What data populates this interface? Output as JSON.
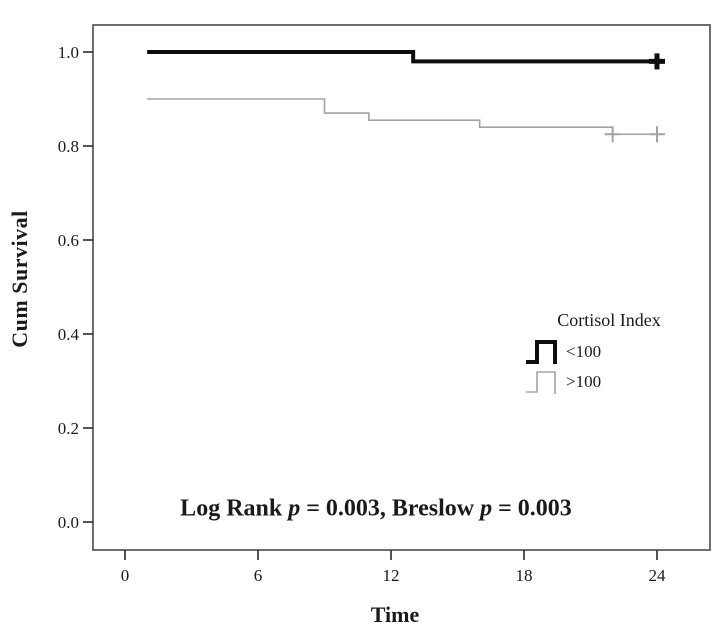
{
  "figure": {
    "y_axis_label": "Cum Survival",
    "x_axis_label": "Time"
  },
  "legend": {
    "title": "Cortisol Index",
    "entries": [
      {
        "label": "<100"
      },
      {
        "label": ">100"
      }
    ]
  },
  "annotation": {
    "full_text": "Log Rank p = 0.003, Breslow p = 0.003",
    "parts": [
      {
        "t": "Log Rank ",
        "italic": false
      },
      {
        "t": "p",
        "italic": true
      },
      {
        "t": " = 0.003, Breslow ",
        "italic": false
      },
      {
        "t": "p",
        "italic": true
      },
      {
        "t": " = 0.003",
        "italic": false
      }
    ]
  },
  "chart_data": {
    "type": "line",
    "subtype": "kaplan-meier-step",
    "title": "",
    "xlabel": "Time",
    "ylabel": "Cum Survival",
    "x_ticks": [
      0,
      6,
      12,
      18,
      24
    ],
    "y_ticks": [
      0.0,
      0.2,
      0.4,
      0.6,
      0.8,
      1.0
    ],
    "xlim": [
      -1.44,
      26.4
    ],
    "ylim": [
      -0.06,
      1.06
    ],
    "grid": false,
    "legend_position": "right-middle",
    "group_variable": "Cortisol Index",
    "series": [
      {
        "name": "<100",
        "color": "#0d0d0d",
        "line_width": 4,
        "points": [
          [
            1,
            1.0
          ],
          [
            13,
            1.0
          ],
          [
            13,
            0.98
          ],
          [
            24,
            0.98
          ]
        ],
        "censor_marks": [
          [
            24,
            0.98
          ]
        ],
        "censor_style": "bold-plus"
      },
      {
        "name": ">100",
        "color": "#a3a3a3",
        "line_width": 1.6,
        "points": [
          [
            1,
            0.9
          ],
          [
            9,
            0.9
          ],
          [
            9,
            0.87
          ],
          [
            11,
            0.87
          ],
          [
            11,
            0.855
          ],
          [
            16,
            0.855
          ],
          [
            16,
            0.84
          ],
          [
            22,
            0.84
          ],
          [
            22,
            0.825
          ],
          [
            24,
            0.825
          ]
        ],
        "censor_marks": [
          [
            22,
            0.825
          ],
          [
            24,
            0.825
          ]
        ],
        "censor_style": "plus"
      }
    ],
    "stats_annotation": "Log Rank p = 0.003, Breslow p = 0.003",
    "frame_color": "#5f5f5f",
    "tick_color": "#2b2b2b"
  }
}
